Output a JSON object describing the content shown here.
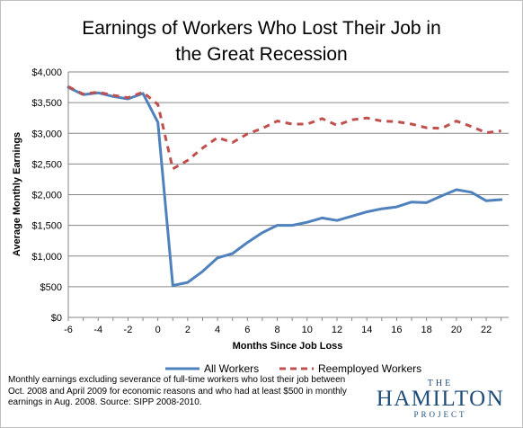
{
  "chart_data": {
    "type": "line",
    "title": "Earnings of Workers Who Lost Their Job in the Great Recession",
    "title_lines": [
      "Earnings of Workers Who Lost Their Job in",
      "the Great Recession"
    ],
    "xlabel": "Months Since Job Loss",
    "ylabel": "Average Monthly Earnings",
    "xlim": [
      -6,
      23.5
    ],
    "ylim": [
      0,
      4000
    ],
    "x_ticks": [
      -6,
      -4,
      -2,
      0,
      2,
      4,
      6,
      8,
      10,
      12,
      14,
      16,
      18,
      20,
      22
    ],
    "y_ticks": [
      0,
      500,
      1000,
      1500,
      2000,
      2500,
      3000,
      3500,
      4000
    ],
    "y_tick_labels": [
      "$0",
      "$500",
      "$1,000",
      "$1,500",
      "$2,000",
      "$2,500",
      "$3,000",
      "$3,500",
      "$4,000"
    ],
    "grid": "horizontal",
    "legend_position": "bottom",
    "x": [
      -6,
      -5,
      -4,
      -3,
      -2,
      -1,
      0,
      1,
      2,
      3,
      4,
      5,
      6,
      7,
      8,
      9,
      10,
      11,
      12,
      13,
      14,
      15,
      16,
      17,
      18,
      19,
      20,
      21,
      22,
      23
    ],
    "series": [
      {
        "name": "All Workers",
        "color": "#4f81bd",
        "style": "solid",
        "values": [
          3750,
          3630,
          3660,
          3600,
          3560,
          3650,
          3180,
          520,
          570,
          750,
          970,
          1040,
          1220,
          1380,
          1500,
          1500,
          1550,
          1620,
          1580,
          1650,
          1720,
          1770,
          1800,
          1880,
          1870,
          1980,
          2080,
          2040,
          1900,
          1920
        ]
      },
      {
        "name": "Reemployed Workers",
        "color": "#c0504d",
        "style": "dashed",
        "values": [
          3760,
          3640,
          3670,
          3620,
          3580,
          3670,
          3470,
          2420,
          2560,
          2760,
          2930,
          2850,
          2990,
          3080,
          3200,
          3150,
          3150,
          3240,
          3130,
          3220,
          3250,
          3200,
          3190,
          3150,
          3090,
          3080,
          3200,
          3110,
          3010,
          3040
        ]
      }
    ]
  },
  "note": "Monthly earnings excluding severance of full-time workers who lost their job between\nOct. 2008 and April 2009 for economic reasons and who had at least $500 in monthly\nearnings in Aug. 2008. Source: SIPP 2008-2010.",
  "logo": {
    "line1": "THE",
    "line2": "HAMILTON",
    "line3": "PROJECT",
    "color": "#1f4e79"
  }
}
